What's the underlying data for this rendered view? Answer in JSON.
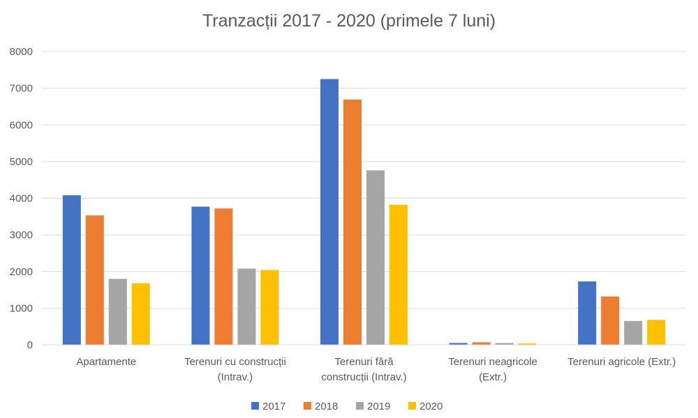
{
  "chart_data": {
    "type": "bar",
    "title": "Tranzacții 2017 - 2020 (primele 7 luni)",
    "xlabel": "",
    "ylabel": "",
    "ylim": [
      0,
      8000
    ],
    "yticks": [
      0,
      1000,
      2000,
      3000,
      4000,
      5000,
      6000,
      7000,
      8000
    ],
    "grid": true,
    "legend_position": "bottom",
    "categories": [
      [
        "Apartamente"
      ],
      [
        "Terenuri cu construcții",
        "(Intrav.)"
      ],
      [
        "Terenuri fără",
        "construcții (Intrav.)"
      ],
      [
        "Terenuri neagricole",
        "(Extr.)"
      ],
      [
        "Terenuri agricole (Extr.)"
      ]
    ],
    "series": [
      {
        "name": "2017",
        "color": "#4472C4",
        "values": [
          4080,
          3770,
          7250,
          50,
          1730
        ]
      },
      {
        "name": "2018",
        "color": "#ED7D31",
        "values": [
          3530,
          3720,
          6690,
          70,
          1320
        ]
      },
      {
        "name": "2019",
        "color": "#A5A5A5",
        "values": [
          1800,
          2080,
          4760,
          50,
          650
        ]
      },
      {
        "name": "2020",
        "color": "#FFC000",
        "values": [
          1680,
          2040,
          3820,
          40,
          680
        ]
      }
    ]
  }
}
